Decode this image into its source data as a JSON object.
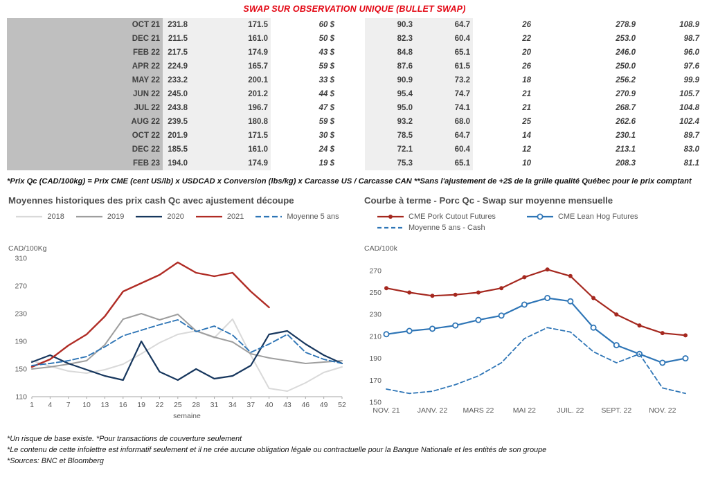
{
  "title": "SWAP SUR OBSERVATION UNIQUE (BULLET SWAP)",
  "colors": {
    "title_red": "#e30613",
    "green": "#00a14b",
    "blue": "#2156a5",
    "month_bg": "#bfbfbf",
    "band_bg": "#efefef"
  },
  "table": {
    "rows": [
      [
        "OCT 21",
        "231.8",
        "171.5",
        "60 $",
        "90.3",
        "64.7",
        "26",
        "278.9",
        "108.9"
      ],
      [
        "DEC 21",
        "211.5",
        "161.0",
        "50 $",
        "82.3",
        "60.4",
        "22",
        "253.0",
        "98.7"
      ],
      [
        "FEB 22",
        "217.5",
        "174.9",
        "43 $",
        "84.8",
        "65.1",
        "20",
        "246.0",
        "96.0"
      ],
      [
        "APR 22",
        "224.9",
        "165.7",
        "59 $",
        "87.6",
        "61.5",
        "26",
        "250.0",
        "97.6"
      ],
      [
        "MAY 22",
        "233.2",
        "200.1",
        "33 $",
        "90.9",
        "73.2",
        "18",
        "256.2",
        "99.9"
      ],
      [
        "JUN 22",
        "245.0",
        "201.2",
        "44 $",
        "95.4",
        "74.7",
        "21",
        "270.9",
        "105.7"
      ],
      [
        "JUL 22",
        "243.8",
        "196.7",
        "47 $",
        "95.0",
        "74.1",
        "21",
        "268.7",
        "104.8"
      ],
      [
        "AUG 22",
        "239.5",
        "180.8",
        "59 $",
        "93.2",
        "68.0",
        "25",
        "262.6",
        "102.4"
      ],
      [
        "OCT 22",
        "201.9",
        "171.5",
        "30 $",
        "78.5",
        "64.7",
        "14",
        "230.1",
        "89.7"
      ],
      [
        "DEC 22",
        "185.5",
        "161.0",
        "24 $",
        "72.1",
        "60.4",
        "12",
        "213.1",
        "83.0"
      ],
      [
        "FEB 23",
        "194.0",
        "174.9",
        "19 $",
        "75.3",
        "65.1",
        "10",
        "208.3",
        "81.1"
      ]
    ]
  },
  "table_footnote": "*Prix Qc (CAD/100kg) = Prix CME (cent US/lb) x USDCAD x Conversion (lbs/kg) x Carcasse US / Carcasse CAN **Sans l'ajustement de +2$ de la grille qualité Québec pour le prix comptant",
  "footer": {
    "line1": "*Un risque de base existe. *Pour transactions de couverture seulement",
    "line2": "*Le contenu de cette infolettre est informatif seulement et il ne crée aucune obligation légale ou contractuelle pour la Banque Nationale et les entités de son groupe",
    "line3": "*Sources: BNC et Bloomberg"
  },
  "chart_data": [
    {
      "type": "line",
      "title": "Moyennes historiques des prix cash Qc avec ajustement découpe",
      "ylabel": "CAD/100Kg",
      "xlabel": "semaine",
      "ylim": [
        110,
        310
      ],
      "yticks": [
        110,
        150,
        190,
        230,
        270,
        310
      ],
      "grid": false,
      "legend_position": "top",
      "x": [
        1,
        4,
        7,
        10,
        13,
        16,
        19,
        22,
        25,
        28,
        31,
        34,
        37,
        40,
        43,
        46,
        49,
        52
      ],
      "series": [
        {
          "name": "2018",
          "color": "#d9d9d9",
          "width": 2,
          "values": [
            162,
            154,
            147,
            144,
            149,
            157,
            172,
            188,
            200,
            205,
            195,
            222,
            170,
            122,
            118,
            130,
            145,
            153
          ]
        },
        {
          "name": "2019",
          "color": "#9e9e9e",
          "width": 2,
          "values": [
            150,
            153,
            157,
            162,
            185,
            222,
            230,
            221,
            229,
            205,
            196,
            189,
            172,
            166,
            162,
            158,
            160,
            162
          ]
        },
        {
          "name": "2020",
          "color": "#17375e",
          "width": 2.2,
          "values": [
            160,
            170,
            158,
            149,
            140,
            134,
            190,
            146,
            134,
            150,
            136,
            140,
            155,
            200,
            205,
            186,
            170,
            158
          ]
        },
        {
          "name": "2021",
          "color": "#b02c25",
          "width": 2.4,
          "values": [
            153,
            164,
            184,
            200,
            226,
            262,
            274,
            286,
            304,
            289,
            284,
            289,
            262,
            239,
            null,
            null,
            null,
            null
          ]
        },
        {
          "name": "Moyenne 5 ans",
          "color": "#2e75b6",
          "width": 1.9,
          "dash": "8,4",
          "values": [
            155,
            158,
            162,
            168,
            182,
            198,
            206,
            214,
            221,
            204,
            212,
            199,
            174,
            186,
            200,
            174,
            164,
            158
          ]
        }
      ]
    },
    {
      "type": "line",
      "title": "Courbe à terme - Porc Qc - Swap sur moyenne mensuelle",
      "ylabel": "CAD/100k",
      "xlabel": "",
      "ylim": [
        150,
        280
      ],
      "yticks": [
        150,
        170,
        190,
        210,
        230,
        250,
        270
      ],
      "grid": false,
      "legend_position": "top",
      "x_ticks": [
        {
          "x": 0,
          "label": "NOV. 21"
        },
        {
          "x": 2,
          "label": "JANV. 22"
        },
        {
          "x": 4,
          "label": "MARS 22"
        },
        {
          "x": 6,
          "label": "MAI 22"
        },
        {
          "x": 8,
          "label": "JUIL. 22"
        },
        {
          "x": 10,
          "label": "SEPT. 22"
        },
        {
          "x": 12,
          "label": "NOV. 22"
        }
      ],
      "series": [
        {
          "name": "CME Pork Cutout Futures",
          "color": "#a5281f",
          "width": 2.2,
          "marker": "dot",
          "values": [
            254,
            250,
            247,
            248,
            250,
            254,
            264,
            271,
            265,
            245,
            230,
            220,
            213,
            211
          ]
        },
        {
          "name": "CME Lean Hog Futures",
          "color": "#2e75b6",
          "width": 2.2,
          "marker": "open",
          "values": [
            212,
            215,
            217,
            220,
            225,
            229,
            239,
            245,
            242,
            218,
            202,
            194,
            186,
            190
          ]
        },
        {
          "name": "Moyenne 5 ans - Cash",
          "color": "#2e75b6",
          "width": 1.8,
          "dash": "6,4",
          "values": [
            162,
            158,
            160,
            166,
            174,
            186,
            208,
            218,
            214,
            196,
            186,
            194,
            163,
            158
          ]
        }
      ]
    }
  ]
}
